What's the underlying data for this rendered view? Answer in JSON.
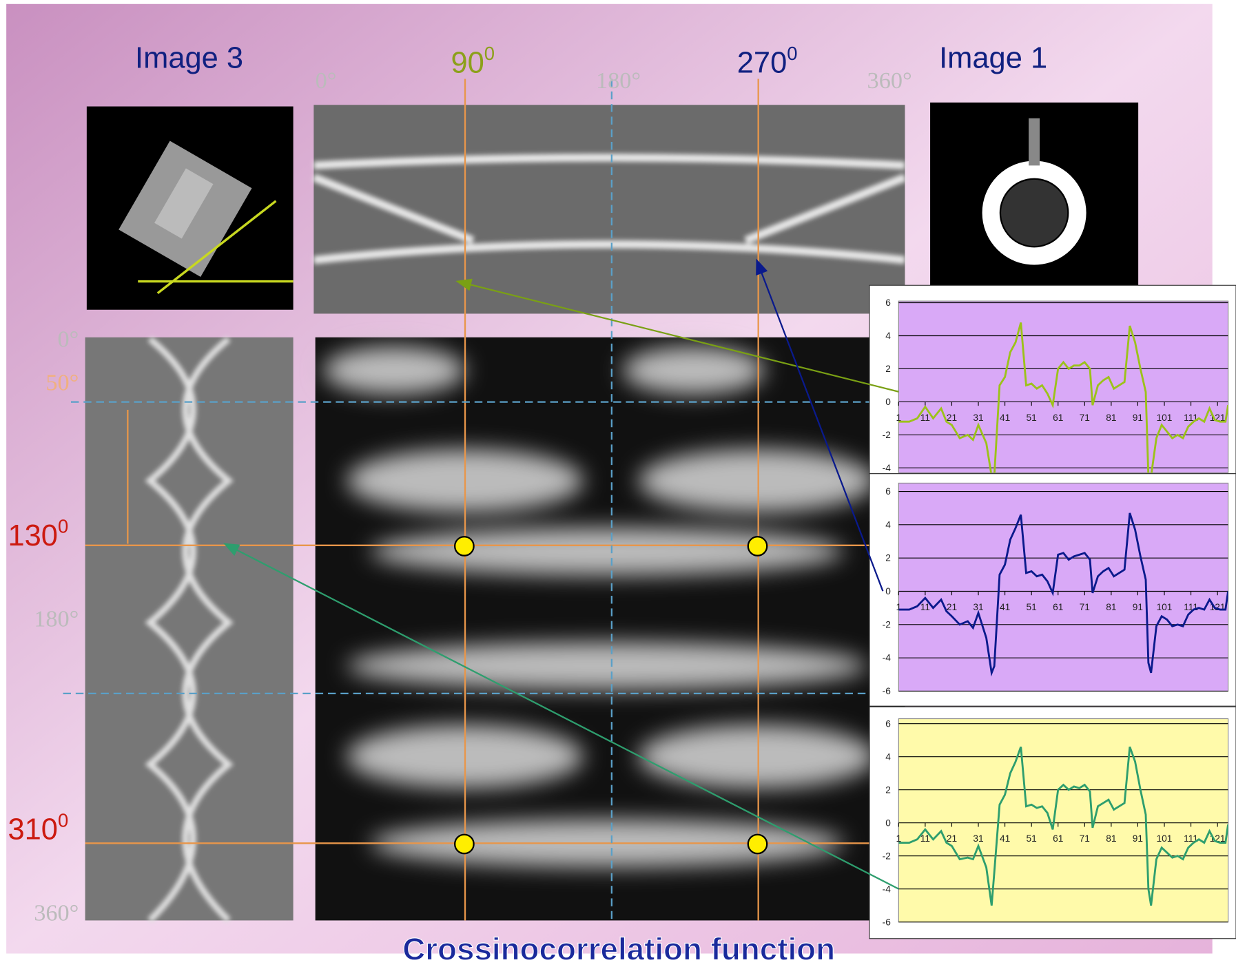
{
  "labels": {
    "image3": "Image 3",
    "image1": "Image 1",
    "angle_90": {
      "value": "90",
      "sup": "0"
    },
    "angle_270": {
      "value": "270",
      "sup": "0"
    },
    "angle_130": {
      "value": "130",
      "sup": "0"
    },
    "angle_310": {
      "value": "310",
      "sup": "0"
    }
  },
  "sinogram_top_ticks": [
    "0°",
    "180°",
    "360°"
  ],
  "sinogram_left_ticks": [
    "0°",
    "50°",
    "180°",
    "360°"
  ],
  "caption": "Crossinocorrelation function",
  "chart_data": [
    {
      "type": "line",
      "background": "#d9a9f7",
      "xlim": [
        1,
        125
      ],
      "xticks": [
        1,
        11,
        21,
        31,
        41,
        51,
        61,
        71,
        81,
        91,
        101,
        111,
        121
      ],
      "ylim": [
        -4.3,
        6.1
      ],
      "yticks": [
        6,
        4,
        2,
        0,
        -2,
        -4
      ],
      "grid": true,
      "x": [
        1,
        5,
        8,
        11,
        14,
        17,
        19,
        21,
        24,
        27,
        29,
        31,
        34,
        36,
        37,
        39,
        41,
        43,
        45,
        47,
        49,
        51,
        53,
        55,
        57,
        59,
        61,
        63,
        65,
        67,
        69,
        71,
        73,
        74,
        76,
        78,
        80,
        82,
        84,
        86,
        88,
        90,
        92,
        94,
        95,
        96,
        98,
        100,
        102,
        104,
        106,
        108,
        110,
        112,
        114,
        116,
        118,
        120,
        122,
        124,
        125
      ],
      "series": [
        {
          "color": "#9cc21a",
          "values": [
            -1.2,
            -1.2,
            -1,
            -0.3,
            -1,
            -0.4,
            -1.2,
            -1.4,
            -2.2,
            -2,
            -2.3,
            -1.4,
            -2.5,
            -4.5,
            -4.5,
            1,
            1.5,
            3,
            3.6,
            4.8,
            1,
            1.1,
            0.8,
            1,
            0.5,
            -0.2,
            2,
            2.4,
            2,
            2.2,
            2.2,
            2.4,
            2,
            -0.2,
            1,
            1.3,
            1.5,
            0.8,
            1,
            1.2,
            4.6,
            3.6,
            2,
            0.6,
            -4.5,
            -4.5,
            -2.2,
            -1.4,
            -1.8,
            -2.2,
            -2,
            -2.2,
            -1.5,
            -1.2,
            -1,
            -1.2,
            -0.4,
            -1.1,
            -1.2,
            -1.2,
            -0.2
          ]
        }
      ]
    },
    {
      "type": "line",
      "background": "#d9a9f7",
      "xlim": [
        1,
        125
      ],
      "xticks": [
        1,
        11,
        21,
        31,
        41,
        51,
        61,
        71,
        81,
        91,
        101,
        111,
        121
      ],
      "ylim": [
        -6,
        6.5
      ],
      "yticks": [
        6,
        4,
        2,
        0,
        -2,
        -4,
        -6
      ],
      "grid": true,
      "x": [
        1,
        5,
        8,
        11,
        14,
        17,
        19,
        21,
        24,
        27,
        29,
        31,
        34,
        36,
        37,
        39,
        41,
        43,
        45,
        47,
        49,
        51,
        53,
        55,
        57,
        59,
        61,
        63,
        65,
        67,
        69,
        71,
        73,
        74,
        76,
        78,
        80,
        82,
        84,
        86,
        88,
        90,
        92,
        94,
        95,
        96,
        98,
        100,
        102,
        104,
        106,
        108,
        110,
        112,
        114,
        116,
        118,
        120,
        122,
        124,
        125
      ],
      "series": [
        {
          "color": "#0a1a8c",
          "values": [
            -1.1,
            -1.1,
            -0.9,
            -0.4,
            -1,
            -0.5,
            -1.2,
            -1.5,
            -2,
            -1.8,
            -2.2,
            -1.3,
            -2.8,
            -4.9,
            -4.5,
            1,
            1.6,
            3.1,
            3.8,
            4.6,
            1.1,
            1.2,
            0.9,
            1,
            0.6,
            -0.1,
            2.2,
            2.3,
            1.9,
            2.1,
            2.2,
            2.3,
            1.9,
            -0.1,
            0.9,
            1.2,
            1.4,
            0.9,
            1.1,
            1.3,
            4.7,
            3.7,
            2.1,
            0.7,
            -4.3,
            -4.9,
            -2.1,
            -1.5,
            -1.7,
            -2.1,
            -2,
            -2.1,
            -1.4,
            -1.1,
            -1,
            -1.1,
            -0.5,
            -1,
            -1.1,
            -1.1,
            0
          ]
        }
      ]
    },
    {
      "type": "line",
      "background": "#fffaaa",
      "xlim": [
        1,
        125
      ],
      "xticks": [
        1,
        11,
        21,
        31,
        41,
        51,
        61,
        71,
        81,
        91,
        101,
        111,
        121
      ],
      "ylim": [
        -6,
        6.3
      ],
      "yticks": [
        6,
        4,
        2,
        0,
        -2,
        -4,
        -6
      ],
      "grid": true,
      "x": [
        1,
        5,
        8,
        11,
        14,
        17,
        19,
        21,
        24,
        27,
        29,
        31,
        34,
        36,
        37,
        39,
        41,
        43,
        45,
        47,
        49,
        51,
        53,
        55,
        57,
        59,
        61,
        63,
        65,
        67,
        69,
        71,
        73,
        74,
        76,
        78,
        80,
        82,
        84,
        86,
        88,
        90,
        92,
        94,
        95,
        96,
        98,
        100,
        102,
        104,
        106,
        108,
        110,
        112,
        114,
        116,
        118,
        120,
        122,
        124,
        125
      ],
      "series": [
        {
          "color": "#2e9e6e",
          "values": [
            -1.2,
            -1.2,
            -1,
            -0.4,
            -1,
            -0.5,
            -1.2,
            -1.4,
            -2.2,
            -2.1,
            -2.2,
            -1.4,
            -2.7,
            -5,
            -3,
            1.1,
            1.7,
            3,
            3.7,
            4.6,
            1,
            1.1,
            0.9,
            1,
            0.6,
            -0.4,
            2,
            2.3,
            2,
            2.2,
            2.1,
            2.3,
            1.9,
            -0.3,
            1,
            1.2,
            1.4,
            0.8,
            1,
            1.2,
            4.6,
            3.7,
            2,
            0.5,
            -4,
            -5,
            -2.2,
            -1.5,
            -1.8,
            -2.1,
            -2,
            -2.2,
            -1.5,
            -1.2,
            -1,
            -1.2,
            -0.5,
            -1.1,
            -1.2,
            -1.2,
            -0.1
          ]
        }
      ]
    }
  ]
}
